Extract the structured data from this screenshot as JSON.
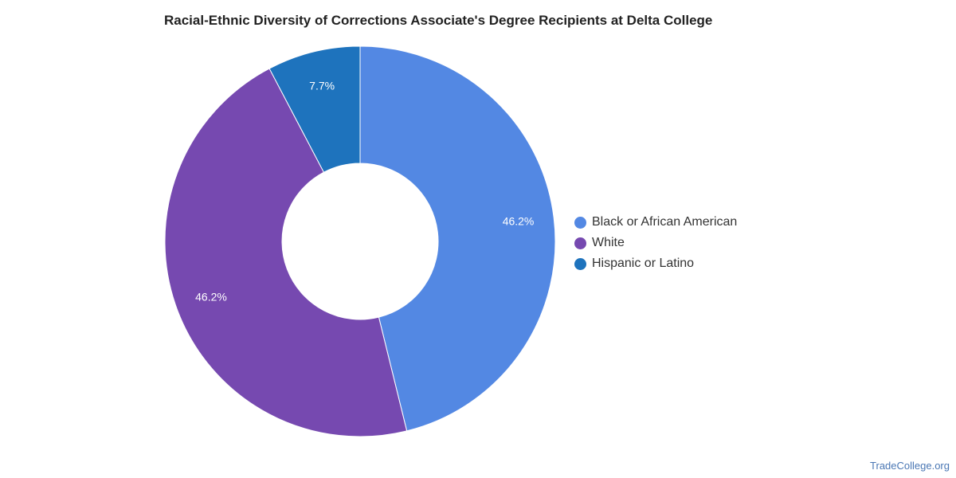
{
  "title": "Racial-Ethnic Diversity of Corrections Associate's Degree Recipients at Delta College",
  "source": "TradeCollege.org",
  "chart_data": {
    "type": "pie",
    "donut": true,
    "title": "Racial-Ethnic Diversity of Corrections Associate's Degree Recipients at Delta College",
    "legend_position": "right",
    "series": [
      {
        "name": "Black or African American",
        "value": 46.2,
        "label": "46.2%",
        "color": "#5388e3"
      },
      {
        "name": "White",
        "value": 46.2,
        "label": "46.2%",
        "color": "#7649b0"
      },
      {
        "name": "Hispanic or Latino",
        "value": 7.7,
        "label": "7.7%",
        "color": "#1e73bd"
      }
    ]
  }
}
